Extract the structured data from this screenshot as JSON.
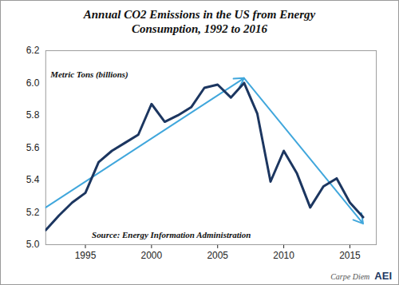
{
  "chart_data": {
    "type": "line",
    "title": "Annual CO2 Emissions in the US from Energy Consumption, 1992 to 2016",
    "unit_label": "Metric Tons (billions)",
    "source": "Source: Energy Information Administration",
    "footer": [
      "Carpe Diem",
      "AEI"
    ],
    "x": [
      1992,
      1993,
      1994,
      1995,
      1996,
      1997,
      1998,
      1999,
      2000,
      2001,
      2002,
      2003,
      2004,
      2005,
      2006,
      2007,
      2008,
      2009,
      2010,
      2011,
      2012,
      2013,
      2014,
      2015,
      2016
    ],
    "values": [
      5.09,
      5.18,
      5.26,
      5.32,
      5.51,
      5.58,
      5.63,
      5.68,
      5.87,
      5.76,
      5.8,
      5.85,
      5.97,
      5.99,
      5.91,
      6.0,
      5.81,
      5.39,
      5.58,
      5.44,
      5.23,
      5.36,
      5.41,
      5.26,
      5.17
    ],
    "color": "#1c3660",
    "trend_arrows": [
      {
        "x1": 1992,
        "y1": 5.23,
        "x2": 2007,
        "y2": 6.03,
        "color": "#41a7dc"
      },
      {
        "x1": 2007,
        "y1": 6.03,
        "x2": 2016,
        "y2": 5.13,
        "color": "#41a7dc"
      }
    ],
    "xlim": [
      1992,
      2017
    ],
    "xticks": [
      1995,
      2000,
      2005,
      2010,
      2015
    ],
    "ylim": [
      5,
      6.2
    ],
    "yticks": [
      {
        "value": 5,
        "label": "5.0"
      },
      5.2,
      5.4,
      5.6,
      5.8,
      {
        "value": 6,
        "label": "6.0"
      },
      6.2
    ],
    "grid": false
  }
}
